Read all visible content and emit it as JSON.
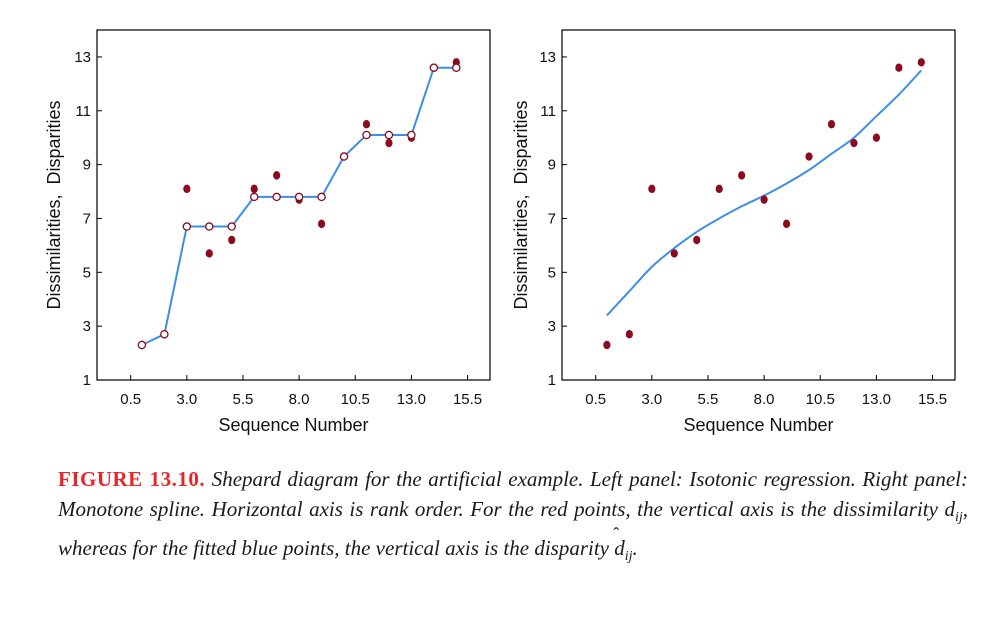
{
  "caption": {
    "label": "FIGURE 13.10.",
    "text_before_dij": " Shepard diagram for the artificial example. Left panel: Isotonic regression. Right panel: Monotone spline. Horizontal axis is rank order. For the red points, the vertical axis is the dissimilarity ",
    "dij_base": "d",
    "dij_sub": "ij",
    "text_middle": ", whereas for the fitted blue points, the vertical axis is the disparity ",
    "hat_d_base": "d",
    "hat_d_sub": "ij",
    "text_end": "."
  },
  "colors": {
    "points": "#8b0a1e",
    "fit_line": "#3b8fe8",
    "frame": "#000000",
    "caption_label": "#e8262a"
  },
  "chart_data": [
    {
      "type": "scatter",
      "panel": "left",
      "xlabel": "Sequence Number",
      "ylabel": "Dissimilarities,  Disparities",
      "xlim": [
        -1,
        16.5
      ],
      "ylim": [
        1,
        14
      ],
      "xticks": [
        0.5,
        3.0,
        5.5,
        8.0,
        10.5,
        13.0,
        15.5
      ],
      "xtick_labels": [
        "0.5",
        "3.0",
        "5.5",
        "8.0",
        "10.5",
        "13.0",
        "15.5"
      ],
      "yticks": [
        1,
        3,
        5,
        7,
        9,
        11,
        13
      ],
      "ytick_labels": [
        "1",
        "3",
        "5",
        "7",
        "9",
        "11",
        "13"
      ],
      "series": [
        {
          "kind": "dissimilarity-points",
          "x": [
            1,
            2,
            3,
            4,
            5,
            6,
            7,
            8,
            9,
            10,
            11,
            12,
            13,
            14,
            15
          ],
          "y": [
            2.3,
            2.7,
            8.1,
            5.7,
            6.2,
            8.1,
            8.6,
            7.7,
            6.8,
            9.3,
            10.5,
            9.8,
            10.0,
            12.6,
            12.8
          ]
        },
        {
          "kind": "isotonic-fit",
          "x": [
            1,
            2,
            3,
            4,
            5,
            6,
            7,
            8,
            9,
            10,
            11,
            12,
            13,
            14,
            15
          ],
          "y": [
            2.3,
            2.7,
            6.7,
            6.7,
            6.7,
            7.8,
            7.8,
            7.8,
            7.8,
            9.3,
            10.1,
            10.1,
            10.1,
            12.6,
            12.6
          ]
        }
      ]
    },
    {
      "type": "scatter",
      "panel": "right",
      "xlabel": "Sequence Number",
      "ylabel": "Dissimilarities,  Disparities",
      "xlim": [
        -1,
        16.5
      ],
      "ylim": [
        1,
        14
      ],
      "xticks": [
        0.5,
        3.0,
        5.5,
        8.0,
        10.5,
        13.0,
        15.5
      ],
      "xtick_labels": [
        "0.5",
        "3.0",
        "5.5",
        "8.0",
        "10.5",
        "13.0",
        "15.5"
      ],
      "yticks": [
        1,
        3,
        5,
        7,
        9,
        11,
        13
      ],
      "ytick_labels": [
        "1",
        "3",
        "5",
        "7",
        "9",
        "11",
        "13"
      ],
      "series": [
        {
          "kind": "dissimilarity-points",
          "x": [
            1,
            2,
            3,
            4,
            5,
            6,
            7,
            8,
            9,
            10,
            11,
            12,
            13,
            14,
            15
          ],
          "y": [
            2.3,
            2.7,
            8.1,
            5.7,
            6.2,
            8.1,
            8.6,
            7.7,
            6.8,
            9.3,
            10.5,
            9.8,
            10.0,
            12.6,
            12.8
          ]
        },
        {
          "kind": "monotone-spline",
          "x": [
            1,
            2,
            3,
            4,
            5,
            6,
            7,
            8,
            9,
            10,
            11,
            12,
            13,
            14,
            15
          ],
          "y": [
            3.4,
            4.3,
            5.2,
            5.9,
            6.5,
            7.0,
            7.45,
            7.85,
            8.3,
            8.8,
            9.4,
            10.0,
            10.8,
            11.6,
            12.5
          ]
        }
      ]
    }
  ]
}
